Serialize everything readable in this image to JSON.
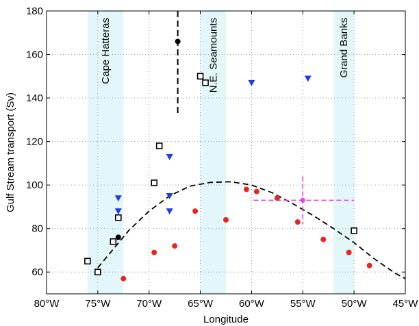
{
  "chart_data": {
    "type": "scatter",
    "xlabel": "Longitude",
    "ylabel": "Gulf Stream transport  (Sv)",
    "xlim": [
      -80,
      -45
    ],
    "ylim": [
      50,
      180
    ],
    "grid": true,
    "x_ticks": [
      {
        "value": -80,
        "label": "80°W"
      },
      {
        "value": -75,
        "label": "75°W"
      },
      {
        "value": -70,
        "label": "70°W"
      },
      {
        "value": -65,
        "label": "65°W"
      },
      {
        "value": -60,
        "label": "60°W"
      },
      {
        "value": -55,
        "label": "55°W"
      },
      {
        "value": -50,
        "label": "50°W"
      },
      {
        "value": -45,
        "label": "45°W"
      }
    ],
    "y_ticks": [
      {
        "value": 60,
        "label": "60"
      },
      {
        "value": 80,
        "label": "80"
      },
      {
        "value": 100,
        "label": "100"
      },
      {
        "value": 120,
        "label": "120"
      },
      {
        "value": 140,
        "label": "140"
      },
      {
        "value": 160,
        "label": "160"
      },
      {
        "value": 180,
        "label": "180"
      }
    ],
    "regions": [
      {
        "label": "Cape Hatteras",
        "x0": -76,
        "x1": -72.5,
        "color": "#e3f7fb"
      },
      {
        "label": "N.E. Seamounts",
        "x0": -65,
        "x1": -62.5,
        "color": "#e3f7fb"
      },
      {
        "label": "Grand Banks",
        "x0": -52,
        "x1": -50,
        "color": "#e3f7fb"
      }
    ],
    "series": [
      {
        "marker": "open-square",
        "color": "#000000",
        "points": [
          [
            -76,
            65
          ],
          [
            -75,
            60
          ],
          [
            -73.5,
            74
          ],
          [
            -73,
            85
          ],
          [
            -69.5,
            101
          ],
          [
            -69,
            118
          ],
          [
            -65,
            150
          ],
          [
            -64.5,
            147
          ],
          [
            -50,
            79
          ]
        ]
      },
      {
        "marker": "triangle-down",
        "color": "#1a3fe0",
        "points": [
          [
            -73,
            94
          ],
          [
            -73,
            88
          ],
          [
            -68,
            113
          ],
          [
            -68,
            95
          ],
          [
            -68,
            88
          ],
          [
            -60,
            147
          ],
          [
            -54.5,
            149
          ]
        ]
      },
      {
        "marker": "filled-circle",
        "color": "#e8261e",
        "points": [
          [
            -72.5,
            57
          ],
          [
            -69.5,
            69
          ],
          [
            -67.5,
            72
          ],
          [
            -65.5,
            88
          ],
          [
            -62.5,
            84
          ],
          [
            -60.5,
            98
          ],
          [
            -59.5,
            97
          ],
          [
            -57.5,
            94
          ],
          [
            -55.5,
            83
          ],
          [
            -53,
            75
          ],
          [
            -50.5,
            69
          ],
          [
            -48.5,
            63
          ]
        ]
      },
      {
        "marker": "filled-circle",
        "color": "#000000",
        "points": [
          [
            -73,
            76
          ],
          [
            -67.2,
            166
          ]
        ]
      }
    ],
    "error_bars": [
      {
        "x": -67.2,
        "y": 166,
        "y_low": 133,
        "y_high": 180,
        "style": "dashed",
        "color": "#000000"
      }
    ],
    "highlight_point": {
      "x": -55,
      "y": 93,
      "x_low": -59.8,
      "x_high": -50,
      "y_low": 82,
      "y_high": 104,
      "color": "#e83fe8"
    },
    "fit_curve": {
      "style": "dashed",
      "color": "#000000",
      "x_start": -75,
      "x_end": -45,
      "points": [
        [
          -75,
          62
        ],
        [
          -72,
          79
        ],
        [
          -70,
          88
        ],
        [
          -68,
          95
        ],
        [
          -66,
          99.5
        ],
        [
          -64,
          101.2
        ],
        [
          -62,
          101.5
        ],
        [
          -60,
          100
        ],
        [
          -58,
          96.5
        ],
        [
          -56,
          91.5
        ],
        [
          -54,
          86
        ],
        [
          -52,
          80
        ],
        [
          -50,
          73.5
        ],
        [
          -48,
          66
        ],
        [
          -46,
          59.5
        ],
        [
          -45,
          57
        ]
      ]
    }
  }
}
